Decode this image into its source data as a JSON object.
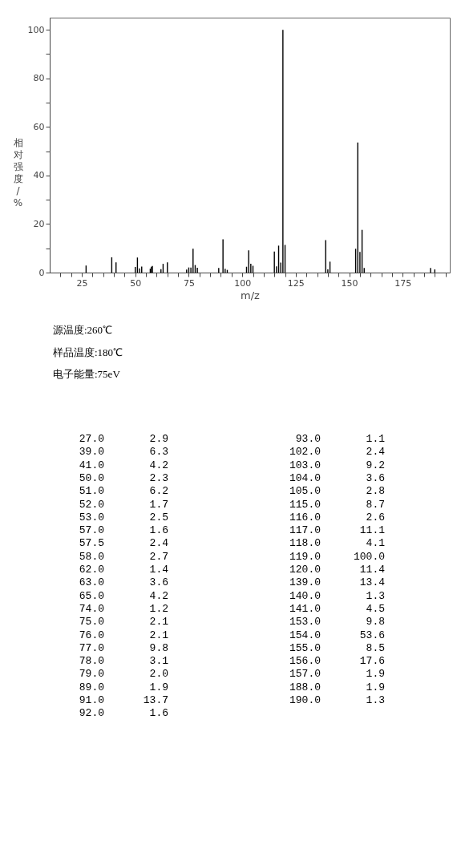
{
  "chart_data": [
    {
      "type": "bar",
      "xlabel": "m/z",
      "ylabel": "相对强度/%",
      "x": [
        27,
        39,
        41,
        50,
        51,
        52,
        53,
        57,
        57.5,
        58,
        62,
        63,
        65,
        74,
        75,
        76,
        77,
        78,
        79,
        89,
        91,
        92,
        93,
        102,
        103,
        104,
        105,
        115,
        116,
        117,
        118,
        119,
        120,
        139,
        140,
        141,
        153,
        154,
        155,
        156,
        157,
        188,
        190
      ],
      "values": [
        2.9,
        6.3,
        4.2,
        2.3,
        6.2,
        1.7,
        2.5,
        1.6,
        2.4,
        2.7,
        1.4,
        3.6,
        4.2,
        1.2,
        2.1,
        2.1,
        9.8,
        3.1,
        2.0,
        1.9,
        13.7,
        1.6,
        1.1,
        2.4,
        9.2,
        3.6,
        2.8,
        8.7,
        2.6,
        11.1,
        4.1,
        100.0,
        11.4,
        13.4,
        1.3,
        4.5,
        9.8,
        53.6,
        8.5,
        17.6,
        1.9,
        1.9,
        1.3
      ],
      "color": "#000000",
      "xlim": [
        10,
        197
      ],
      "xticks": [
        {
          "value": 15,
          "label": null
        },
        {
          "value": 20,
          "label": null
        },
        25,
        {
          "value": 30,
          "label": null
        },
        {
          "value": 35,
          "label": null
        },
        {
          "value": 40,
          "label": null
        },
        {
          "value": 45,
          "label": null
        },
        50,
        {
          "value": 55,
          "label": null
        },
        {
          "value": 60,
          "label": null
        },
        {
          "value": 65,
          "label": null
        },
        {
          "value": 70,
          "label": null
        },
        75,
        {
          "value": 80,
          "label": null
        },
        {
          "value": 85,
          "label": null
        },
        {
          "value": 90,
          "label": null
        },
        {
          "value": 95,
          "label": null
        },
        100,
        {
          "value": 105,
          "label": null
        },
        {
          "value": 110,
          "label": null
        },
        {
          "value": 115,
          "label": null
        },
        {
          "value": 120,
          "label": null
        },
        125,
        {
          "value": 130,
          "label": null
        },
        {
          "value": 135,
          "label": null
        },
        {
          "value": 140,
          "label": null
        },
        {
          "value": 145,
          "label": null
        },
        150,
        {
          "value": 155,
          "label": null
        },
        {
          "value": 160,
          "label": null
        },
        {
          "value": 165,
          "label": null
        },
        {
          "value": 170,
          "label": null
        },
        175,
        {
          "value": 180,
          "label": null
        },
        {
          "value": 185,
          "label": null
        },
        {
          "value": 190,
          "label": null
        },
        {
          "value": 195,
          "label": null
        }
      ],
      "ylim": [
        0,
        105
      ],
      "yticks": [
        0,
        {
          "value": 10,
          "label": null
        },
        20,
        {
          "value": 30,
          "label": null
        },
        40,
        {
          "value": 50,
          "label": null
        },
        60,
        {
          "value": 70,
          "label": null
        },
        80,
        {
          "value": 90,
          "label": null
        },
        100
      ],
      "annotations": [
        "源温度:260℃",
        "样品温度:180℃",
        "电子能量:75eV"
      ]
    },
    {
      "type": "other",
      "annotations": [
        "27.0",
        "2.9",
        "39.0",
        "6.3",
        "41.0",
        "4.2",
        "50.0",
        "2.3",
        "51.0",
        "6.2",
        "52.0",
        "1.7",
        "53.0",
        "2.5",
        "57.0",
        "1.6",
        "57.5",
        "2.4",
        "58.0",
        "2.7",
        "62.0",
        "1.4",
        "63.0",
        "3.6",
        "65.0",
        "4.2",
        "74.0",
        "1.2",
        "75.0",
        "2.1",
        "76.0",
        "2.1",
        "77.0",
        "9.8",
        "78.0",
        "3.1",
        "79.0",
        "2.0",
        "89.0",
        "1.9",
        "91.0",
        "13.7",
        "92.0",
        "1.6",
        "93.0",
        "1.1",
        "102.0",
        "2.4",
        "103.0",
        "9.2",
        "104.0",
        "3.6",
        "105.0",
        "2.8",
        "115.0",
        "8.7",
        "116.0",
        "2.6",
        "117.0",
        "11.1",
        "118.0",
        "4.1",
        "119.0",
        "100.0",
        "120.0",
        "11.4",
        "139.0",
        "13.4",
        "140.0",
        "1.3",
        "141.0",
        "4.5",
        "153.0",
        "9.8",
        "154.0",
        "53.6",
        "155.0",
        "8.5",
        "156.0",
        "17.6",
        "157.0",
        "1.9",
        "188.0",
        "1.9",
        "190.0",
        "1.3"
      ]
    }
  ]
}
